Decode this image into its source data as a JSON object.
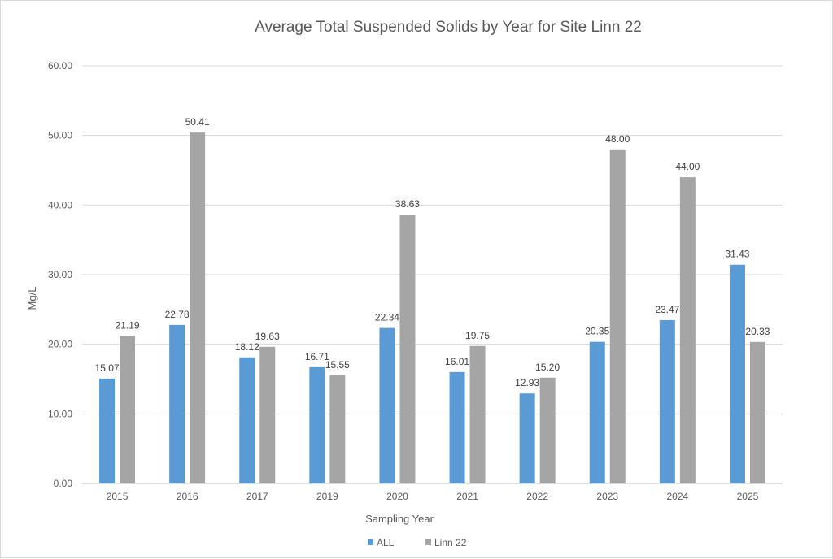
{
  "chart_data": {
    "type": "bar",
    "title": "Average Total Suspended Solids by Year for Site Linn 22",
    "xlabel": "Sampling Year",
    "ylabel": "Mg/L",
    "ylim": [
      0,
      60
    ],
    "yticks": [
      "0.00",
      "10.00",
      "20.00",
      "30.00",
      "40.00",
      "50.00",
      "60.00"
    ],
    "grid": true,
    "legend_position": "bottom",
    "categories": [
      "2015",
      "2016",
      "2017",
      "2019",
      "2020",
      "2021",
      "2022",
      "2023",
      "2024",
      "2025"
    ],
    "series": [
      {
        "name": "ALL",
        "color": "#5b9bd5",
        "values": [
          15.07,
          22.78,
          18.12,
          16.71,
          22.34,
          16.01,
          12.93,
          20.35,
          23.47,
          31.43
        ],
        "labels": [
          "15.07",
          "22.78",
          "18.12",
          "16.71",
          "22.34",
          "16.01",
          "12.93",
          "20.35",
          "23.47",
          "31.43"
        ]
      },
      {
        "name": "Linn 22",
        "color": "#a5a5a5",
        "values": [
          21.19,
          50.41,
          19.63,
          15.55,
          38.63,
          19.75,
          15.2,
          48.0,
          44.0,
          20.33
        ],
        "labels": [
          "21.19",
          "50.41",
          "19.63",
          "15.55",
          "38.63",
          "19.75",
          "15.20",
          "48.00",
          "44.00",
          "20.33"
        ]
      }
    ]
  }
}
